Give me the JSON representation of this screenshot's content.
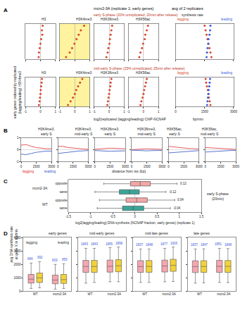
{
  "chart_data": [
    {
      "type": "dot",
      "panel": "A",
      "title": "mcm2-3A (replicate 1; early genes)",
      "y_label": "early genes ordered by replicated (lagging/leading) H3K4me3",
      "x_label": "log2(replicated (lagging/leading) ChIP-NCNAP",
      "categories": [
        null,
        null,
        null,
        null,
        null,
        null,
        null,
        null
      ],
      "xlim": [
        -1,
        1
      ],
      "xticks": [
        -1,
        0,
        1
      ],
      "color": "#d9472b",
      "rows": [
        {
          "title": "early S-phase (20% unreplicated; 20min after release)",
          "series": [
            {
              "name": "H3",
              "values": [
                0.15,
                0.1,
                0.12,
                0.05,
                0.0,
                -0.05,
                -0.1,
                -0.12
              ]
            },
            {
              "name": "H3K4me3",
              "values": [
                0.62,
                0.4,
                0.26,
                0.12,
                -0.02,
                -0.18,
                -0.34,
                -0.58
              ]
            },
            {
              "name": "H3K36me3",
              "values": [
                0.2,
                0.15,
                0.1,
                0.05,
                0.02,
                -0.05,
                -0.1,
                -0.18
              ]
            },
            {
              "name": "H3K56ac",
              "values": [
                0.3,
                0.22,
                0.12,
                0.08,
                -0.02,
                -0.1,
                -0.2,
                -0.28
              ]
            }
          ]
        },
        {
          "title": "mid-early S-phase (25% unreplicated; 25min after release)",
          "series": [
            {
              "name": "H3",
              "values": [
                0.1,
                0.08,
                0.05,
                0.02,
                0.0,
                -0.03,
                -0.06,
                -0.1
              ]
            },
            {
              "name": "H3K4me3",
              "values": [
                0.5,
                0.35,
                0.22,
                0.1,
                0.0,
                -0.12,
                -0.28,
                -0.45
              ]
            },
            {
              "name": "H3K36me3",
              "values": [
                0.15,
                0.1,
                0.08,
                0.03,
                0.0,
                -0.04,
                -0.08,
                -0.12
              ]
            },
            {
              "name": "H3K56ac",
              "values": [
                0.22,
                0.16,
                0.1,
                0.05,
                0.0,
                -0.06,
                -0.14,
                -0.2
              ]
            }
          ]
        }
      ]
    },
    {
      "type": "scatter",
      "title": "avg of 2 replicates",
      "subtitle": "synthesis rate",
      "x_label": "bp/min",
      "categories": [
        null,
        null,
        null,
        null,
        null,
        null,
        null,
        null
      ],
      "xlim": [
        0,
        3000
      ],
      "xticks": [
        0,
        1500,
        3000
      ],
      "rows": [
        {
          "series": [
            {
              "name": "lagging",
              "color": "#d9472b",
              "values": [
                1500,
                1550,
                1600,
                1650,
                1700,
                1750,
                1800,
                1850
              ]
            },
            {
              "name": "leading",
              "color": "#3b5bdb",
              "values": [
                1800,
                1780,
                1750,
                1700,
                1680,
                1650,
                1620,
                1600
              ]
            }
          ]
        },
        {
          "series": [
            {
              "name": "lagging",
              "color": "#d9472b",
              "values": [
                1550,
                1580,
                1620,
                1660,
                1700,
                1720,
                1760,
                1800
              ]
            },
            {
              "name": "leading",
              "color": "#3b5bdb",
              "values": [
                1780,
                1760,
                1740,
                1710,
                1690,
                1670,
                1650,
                1630
              ]
            }
          ]
        }
      ]
    },
    {
      "type": "line",
      "panel": "B",
      "x": [
        0,
        500,
        1000,
        1500,
        2000,
        2500,
        3000
      ],
      "xlim": [
        0,
        3000
      ],
      "xticks": [
        0,
        1500,
        3000
      ],
      "ylim": [
        -1,
        1
      ],
      "yticks": [
        -1,
        0,
        1
      ],
      "x_label": "distance from tss (bp)",
      "subplots": [
        {
          "title": "H3K4me3, early S",
          "series": [
            {
              "name": "lagging",
              "color": "#e0303a",
              "values": [
                0.4,
                0.45,
                0.3,
                0.2,
                0.15,
                0.1,
                0.1
              ]
            },
            {
              "name": "leading",
              "color": "#3050c8",
              "values": [
                -0.35,
                -0.4,
                -0.3,
                -0.2,
                -0.15,
                -0.1,
                -0.1
              ]
            }
          ]
        },
        {
          "title": "H3K4me3, mid-early S",
          "series": [
            {
              "name": "lagging",
              "color": "#e0303a",
              "values": [
                0.3,
                0.3,
                0.2,
                0.15,
                0.1,
                0.08,
                0.05
              ]
            },
            {
              "name": "leading",
              "color": "#3050c8",
              "values": [
                -0.3,
                -0.25,
                -0.2,
                -0.12,
                -0.1,
                -0.08,
                -0.05
              ]
            }
          ]
        },
        {
          "title": "H3K36me3, early S",
          "series": [
            {
              "name": "lagging",
              "color": "#e0303a",
              "values": [
                0.05,
                0.1,
                0.12,
                0.15,
                0.12,
                0.1,
                0.1
              ]
            },
            {
              "name": "leading",
              "color": "#3050c8",
              "values": [
                -0.05,
                -0.08,
                -0.1,
                -0.12,
                -0.1,
                -0.1,
                -0.08
              ]
            }
          ]
        },
        {
          "title": "H3K36me3, mid-early S",
          "series": [
            {
              "name": "lagging",
              "color": "#e0303a",
              "values": [
                0.02,
                0.05,
                0.08,
                0.1,
                0.08,
                0.06,
                0.05
              ]
            },
            {
              "name": "leading",
              "color": "#3050c8",
              "values": [
                -0.02,
                -0.05,
                -0.06,
                -0.08,
                -0.06,
                -0.05,
                -0.04
              ]
            }
          ]
        },
        {
          "title": "H3K56ac, early S",
          "series": [
            {
              "name": "lagging",
              "color": "#e0303a",
              "values": [
                0.3,
                0.25,
                0.2,
                0.15,
                0.12,
                0.1,
                0.08
              ]
            },
            {
              "name": "leading",
              "color": "#3050c8",
              "values": [
                -0.25,
                -0.22,
                -0.18,
                -0.12,
                -0.1,
                -0.08,
                -0.06
              ]
            }
          ]
        },
        {
          "title": "H3K56ac, mid-early S",
          "series": [
            {
              "name": "lagging",
              "color": "#e0303a",
              "values": [
                0.2,
                0.18,
                0.12,
                0.1,
                0.08,
                0.06,
                0.05
              ]
            },
            {
              "name": "leading",
              "color": "#3050c8",
              "values": [
                -0.18,
                -0.15,
                -0.1,
                -0.08,
                -0.06,
                -0.05,
                -0.04
              ]
            }
          ]
        }
      ]
    },
    {
      "type": "box",
      "panel": "C",
      "orientation": "horizontal",
      "categories": [
        "opposite",
        "same",
        "opposite",
        "same"
      ],
      "groups": [
        "mcm2-3A",
        "mcm2-3A",
        "WT",
        "WT"
      ],
      "colors": [
        "#f2a7a7",
        "#3aa597",
        "#f2a7a7",
        "#3aa597"
      ],
      "q1": [
        -0.1,
        -0.35,
        -0.2,
        -0.28
      ],
      "median": [
        0.12,
        -0.12,
        0.04,
        -0.04
      ],
      "q3": [
        0.35,
        0.1,
        0.28,
        0.2
      ],
      "lowerfence": [
        -0.7,
        -0.9,
        -0.8,
        -0.85
      ],
      "upperfence": [
        0.95,
        0.7,
        0.9,
        0.8
      ],
      "data_labels": true,
      "xlim": [
        -1.5,
        1.5
      ],
      "xticks": [
        -1.5,
        -1,
        -0.5,
        0,
        0.5,
        1,
        1.5
      ],
      "x_label": "log2(lagging/leading) DNA synthesis (NCNAP fraction, early genes) (replicate 1)",
      "note": "early S-phase (20min)"
    },
    {
      "type": "box",
      "panel": "D",
      "categories": [
        "WT",
        "mcm2-3A"
      ],
      "ylim": [
        0,
        4000
      ],
      "yticks": [
        0,
        1000,
        2000,
        3000,
        4000
      ],
      "y_label": "avg DNA synthesis rate at gene X in bp/min",
      "data_labels": true,
      "subplots": [
        {
          "title": "early genes",
          "series": [
            {
              "name": "lagging",
              "color": "#f4a6b0",
              "q1": [
                600,
                550
              ],
              "median": [
                894,
                829
              ],
              "q3": [
                1250,
                1200
              ],
              "lowerfence": [
                200,
                150
              ],
              "upperfence": [
                2100,
                2000
              ]
            },
            {
              "name": "leading",
              "color": "#f2d23a",
              "q1": [
                650,
                580
              ],
              "median": [
                992,
                859
              ],
              "q3": [
                1350,
                1250
              ],
              "lowerfence": [
                250,
                200
              ],
              "upperfence": [
                2200,
                2050
              ]
            }
          ]
        },
        {
          "title": "mid-early genes",
          "series": [
            {
              "name": "lagging",
              "color": "#f4a6b0",
              "q1": [
                1400,
                1420
              ],
              "median": [
                1843,
                1855
              ],
              "q3": [
                2300,
                2320
              ],
              "lowerfence": [
                600,
                700
              ],
              "upperfence": [
                3200,
                3250
              ]
            },
            {
              "name": "leading",
              "color": "#f2d23a",
              "q1": [
                1400,
                1450
              ],
              "median": [
                1843,
                1898
              ],
              "q3": [
                2300,
                2350
              ],
              "lowerfence": [
                650,
                700
              ],
              "upperfence": [
                3200,
                3300
              ]
            }
          ]
        },
        {
          "title": "mid-late genes",
          "series": [
            {
              "name": "lagging",
              "color": "#f4a6b0",
              "q1": [
                1400,
                1430
              ],
              "median": [
                1837,
                1877
              ],
              "q3": [
                2280,
                2320
              ],
              "lowerfence": [
                650,
                700
              ],
              "upperfence": [
                3150,
                3200
              ]
            },
            {
              "name": "leading",
              "color": "#f2d23a",
              "q1": [
                1410,
                1480
              ],
              "median": [
                1848,
                1926
              ],
              "q3": [
                2290,
                2380
              ],
              "lowerfence": [
                650,
                720
              ],
              "upperfence": [
                3150,
                3300
              ]
            }
          ]
        },
        {
          "title": "late genes",
          "series": [
            {
              "name": "lagging",
              "color": "#f4a6b0",
              "q1": [
                1390,
                1400
              ],
              "median": [
                1837,
                1851
              ],
              "q3": [
                2270,
                2300
              ],
              "lowerfence": [
                600,
                650
              ],
              "upperfence": [
                3150,
                3200
              ]
            },
            {
              "name": "leading",
              "color": "#f2d23a",
              "q1": [
                1400,
                1400
              ],
              "median": [
                1847,
                1848
              ],
              "q3": [
                2280,
                2290
              ],
              "lowerfence": [
                620,
                640
              ],
              "upperfence": [
                3160,
                3180
              ]
            }
          ]
        }
      ]
    }
  ]
}
